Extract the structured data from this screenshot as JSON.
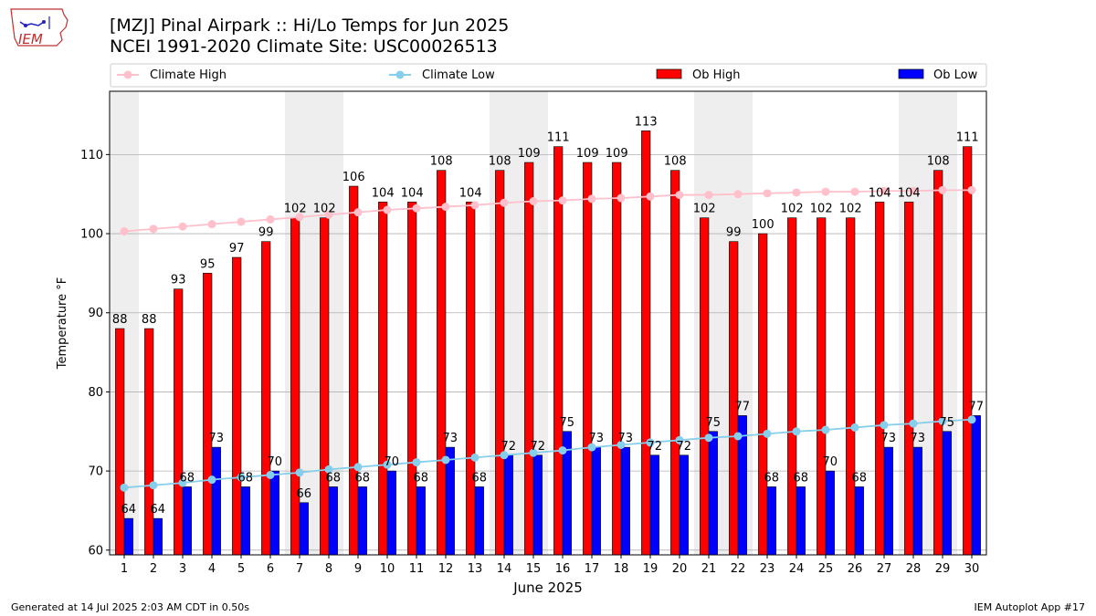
{
  "logo": {
    "text": "IEM"
  },
  "title_line1": "[MZJ] Pinal Airpark :: Hi/Lo Temps for Jun 2025",
  "title_line2": "NCEI 1991-2020 Climate Site: USC00026513",
  "footer": {
    "left": "Generated at 14 Jul 2025 2:03 AM CDT in 0.50s",
    "right": "IEM Autoplot App #17"
  },
  "colors": {
    "ob_high": "#ff0000",
    "ob_low": "#0000ff",
    "climate_high": "#ffc0cb",
    "climate_low": "#87ceeb",
    "weekend_shade": "#eeeeee"
  },
  "chart_data": {
    "type": "bar",
    "xlabel": "June 2025",
    "ylabel": "Temperature °F",
    "ylim": [
      59.4,
      118
    ],
    "yticks": [
      60,
      70,
      80,
      90,
      100,
      110
    ],
    "grid": "horizontal",
    "legend": {
      "placement": "top",
      "entries": [
        "Climate High",
        "Climate Low",
        "Ob High",
        "Ob Low"
      ]
    },
    "categories": [
      "1",
      "2",
      "3",
      "4",
      "5",
      "6",
      "7",
      "8",
      "9",
      "10",
      "11",
      "12",
      "13",
      "14",
      "15",
      "16",
      "17",
      "18",
      "19",
      "20",
      "21",
      "22",
      "23",
      "24",
      "25",
      "26",
      "27",
      "28",
      "29",
      "30"
    ],
    "shaded_days": [
      1,
      7,
      8,
      14,
      15,
      21,
      22,
      28,
      29
    ],
    "series": [
      {
        "name": "Ob High",
        "kind": "bar",
        "values": [
          88,
          88,
          93,
          95,
          97,
          99,
          102,
          102,
          106,
          104,
          104,
          108,
          104,
          108,
          109,
          111,
          109,
          109,
          113,
          108,
          102,
          99,
          100,
          102,
          102,
          102,
          104,
          104,
          108,
          111
        ]
      },
      {
        "name": "Ob Low",
        "kind": "bar",
        "values": [
          64,
          64,
          68,
          73,
          68,
          70,
          66,
          68,
          68,
          70,
          68,
          73,
          68,
          72,
          72,
          75,
          73,
          73,
          72,
          72,
          75,
          77,
          68,
          68,
          70,
          68,
          73,
          73,
          75,
          77
        ]
      },
      {
        "name": "Climate High",
        "kind": "line",
        "values": [
          100.3,
          100.6,
          100.9,
          101.2,
          101.5,
          101.8,
          102.1,
          102.4,
          102.7,
          103.0,
          103.2,
          103.4,
          103.6,
          103.9,
          104.1,
          104.2,
          104.4,
          104.5,
          104.7,
          104.9,
          104.9,
          105.0,
          105.1,
          105.2,
          105.3,
          105.3,
          105.4,
          105.4,
          105.5,
          105.5
        ]
      },
      {
        "name": "Climate Low",
        "kind": "line",
        "values": [
          67.9,
          68.2,
          68.5,
          68.9,
          69.2,
          69.5,
          69.8,
          70.2,
          70.5,
          70.8,
          71.1,
          71.4,
          71.7,
          72.0,
          72.3,
          72.6,
          73.0,
          73.3,
          73.6,
          73.9,
          74.2,
          74.4,
          74.7,
          75.0,
          75.2,
          75.5,
          75.8,
          76.0,
          76.3,
          76.5
        ]
      }
    ]
  }
}
